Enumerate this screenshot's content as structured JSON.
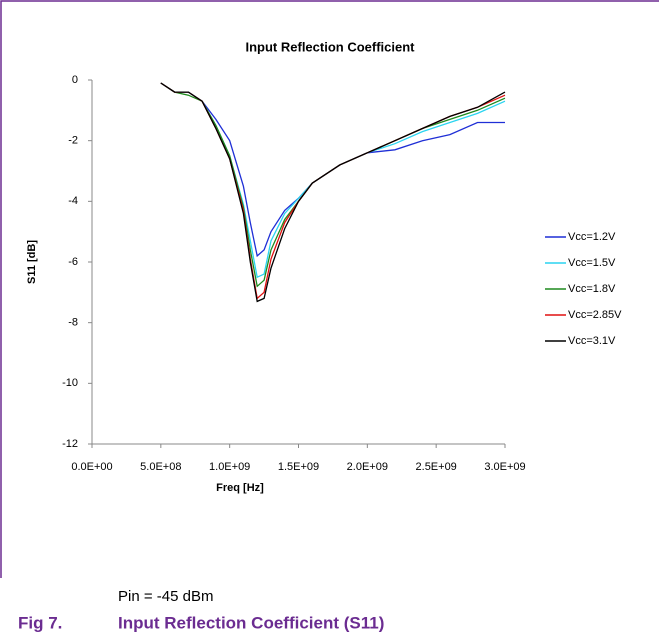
{
  "chart_data": {
    "type": "line",
    "title": "Input Reflection Coefficient",
    "xlabel": "Freq [Hz]",
    "ylabel": "S11 [dB]",
    "x": [
      500000000,
      600000000,
      700000000,
      800000000,
      900000000,
      1000000000,
      1100000000,
      1150000000,
      1200000000,
      1250000000,
      1300000000,
      1400000000,
      1500000000,
      1600000000,
      1800000000,
      2000000000,
      2200000000,
      2400000000,
      2600000000,
      2800000000,
      3000000000
    ],
    "series": [
      {
        "name": "Vcc=1.2V",
        "color": "#1f2fd6",
        "values": [
          -0.1,
          -0.4,
          -0.4,
          -0.7,
          -1.3,
          -2.0,
          -3.5,
          -4.7,
          -5.8,
          -5.6,
          -5.0,
          -4.3,
          -3.9,
          -3.4,
          -2.8,
          -2.4,
          -2.3,
          -2.0,
          -1.8,
          -1.4,
          -1.4
        ]
      },
      {
        "name": "Vcc=1.5V",
        "color": "#2ad4f0",
        "values": [
          -0.1,
          -0.4,
          -0.4,
          -0.7,
          -1.5,
          -2.5,
          -4.1,
          -5.3,
          -6.5,
          -6.4,
          -5.3,
          -4.4,
          -3.9,
          -3.4,
          -2.8,
          -2.4,
          -2.1,
          -1.7,
          -1.4,
          -1.1,
          -0.7
        ]
      },
      {
        "name": "Vcc=1.8V",
        "color": "#1e8a1e",
        "values": [
          -0.1,
          -0.4,
          -0.5,
          -0.7,
          -1.5,
          -2.5,
          -4.2,
          -5.6,
          -6.8,
          -6.6,
          -5.6,
          -4.6,
          -4.0,
          -3.4,
          -2.8,
          -2.4,
          -2.0,
          -1.6,
          -1.3,
          -1.0,
          -0.6
        ]
      },
      {
        "name": "Vcc=2.85V",
        "color": "#e01010",
        "values": [
          -0.1,
          -0.4,
          -0.4,
          -0.7,
          -1.6,
          -2.6,
          -4.3,
          -5.9,
          -7.2,
          -7.0,
          -5.9,
          -4.7,
          -4.0,
          -3.4,
          -2.8,
          -2.4,
          -2.0,
          -1.6,
          -1.2,
          -0.9,
          -0.5
        ]
      },
      {
        "name": "Vcc=3.1V",
        "color": "#000000",
        "values": [
          -0.1,
          -0.4,
          -0.4,
          -0.7,
          -1.6,
          -2.6,
          -4.4,
          -6.0,
          -7.3,
          -7.2,
          -6.2,
          -4.9,
          -4.0,
          -3.4,
          -2.8,
          -2.4,
          -2.0,
          -1.6,
          -1.2,
          -0.9,
          -0.4
        ]
      }
    ],
    "xlim": [
      0,
      3000000000
    ],
    "xticks": [
      {
        "value": 0,
        "label": "0.0E+00"
      },
      {
        "value": 500000000,
        "label": "5.0E+08"
      },
      {
        "value": 1000000000,
        "label": "1.0E+09"
      },
      {
        "value": 1500000000,
        "label": "1.5E+09"
      },
      {
        "value": 2000000000,
        "label": "2.0E+09"
      },
      {
        "value": 2500000000,
        "label": "2.5E+09"
      },
      {
        "value": 3000000000,
        "label": "3.0E+09"
      }
    ],
    "ylim": [
      -12,
      0
    ],
    "yticks": [
      0,
      -2,
      -4,
      -6,
      -8,
      -10,
      -12
    ],
    "grid": false,
    "legend": "right"
  },
  "note": "Pin = -45 dBm",
  "figure": {
    "number": "Fig 7.",
    "caption": "Input Reflection Coefficient (S11)"
  }
}
